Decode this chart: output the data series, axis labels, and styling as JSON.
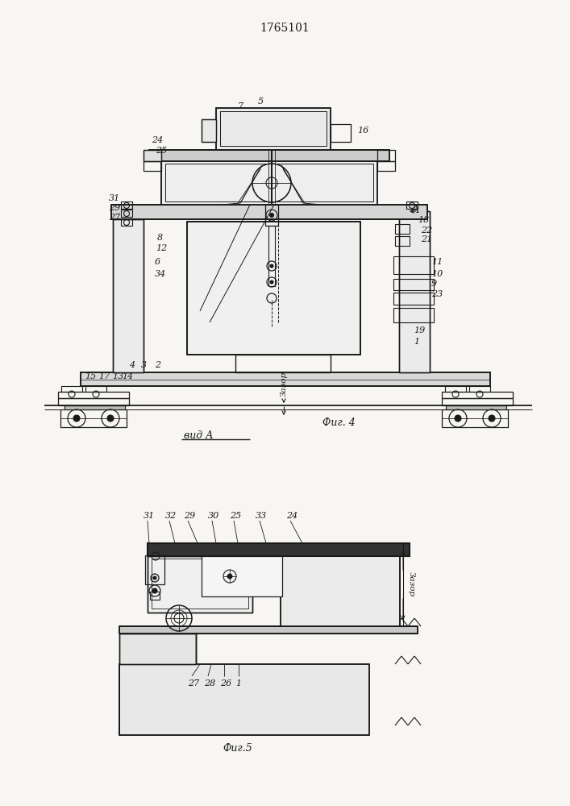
{
  "title": "1765101",
  "fig4_label": "Фиг. 4",
  "fig5_label": "Фиг.5",
  "vidA_label": "вид A",
  "zazor": "Зазор",
  "bg_color": "#f8f6f2",
  "lc": "#1a1a1a"
}
